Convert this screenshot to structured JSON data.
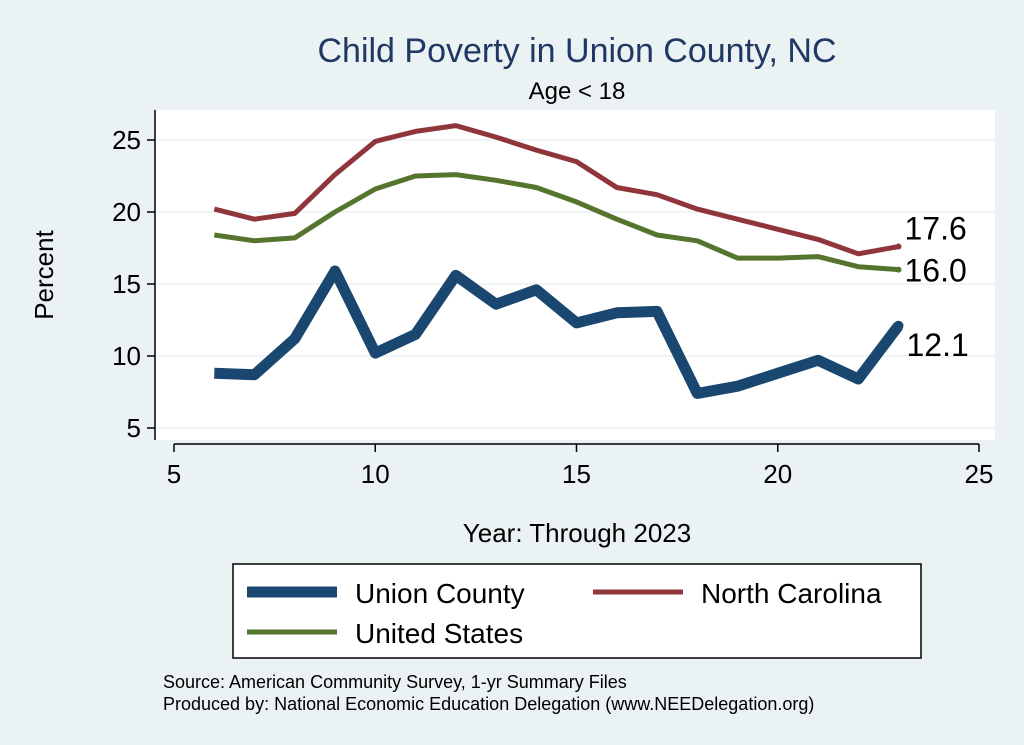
{
  "chart_data": {
    "type": "line",
    "title": "Child Poverty in Union County, NC",
    "subtitle": "Age < 18",
    "xlabel": "Year: Through 2023",
    "ylabel": "Percent",
    "xlim": [
      5,
      25
    ],
    "ylim": [
      4,
      26.5
    ],
    "xticks": [
      5,
      10,
      15,
      20,
      25
    ],
    "yticks": [
      5,
      10,
      15,
      20,
      25
    ],
    "grid": true,
    "legend_position": "bottom",
    "series": [
      {
        "name": "Union County",
        "color": "#1a476f",
        "x": [
          6,
          7,
          8,
          9,
          10,
          11,
          12,
          13,
          14,
          15,
          16,
          17,
          18,
          19,
          20,
          21,
          22,
          23
        ],
        "y": [
          8.8,
          8.7,
          11.2,
          15.9,
          10.2,
          11.5,
          15.6,
          13.6,
          14.6,
          12.3,
          13.0,
          13.1,
          7.4,
          7.9,
          8.8,
          9.7,
          8.4,
          12.1
        ],
        "end_label": "12.1"
      },
      {
        "name": "North Carolina",
        "color": "#90353b",
        "x": [
          6,
          7,
          8,
          9,
          10,
          11,
          12,
          13,
          14,
          15,
          16,
          17,
          18,
          19,
          20,
          21,
          22,
          23
        ],
        "y": [
          20.2,
          19.5,
          19.9,
          22.6,
          24.9,
          25.6,
          26.0,
          25.2,
          24.3,
          23.5,
          21.7,
          21.2,
          20.2,
          19.5,
          18.8,
          18.1,
          17.1,
          17.6
        ],
        "end_label": "17.6"
      },
      {
        "name": "United States",
        "color": "#55752f",
        "x": [
          6,
          7,
          8,
          9,
          10,
          11,
          12,
          13,
          14,
          15,
          16,
          17,
          18,
          19,
          20,
          21,
          22,
          23
        ],
        "y": [
          18.4,
          18.0,
          18.2,
          20.0,
          21.6,
          22.5,
          22.6,
          22.2,
          21.7,
          20.7,
          19.5,
          18.4,
          18.0,
          16.8,
          16.8,
          16.9,
          16.2,
          16.0
        ],
        "end_label": "16.0"
      }
    ]
  },
  "notes": [
    "Source: American Community Survey, 1-yr Summary Files",
    "Produced by: National Economic Education Delegation (www.NEEDelegation.org)"
  ]
}
